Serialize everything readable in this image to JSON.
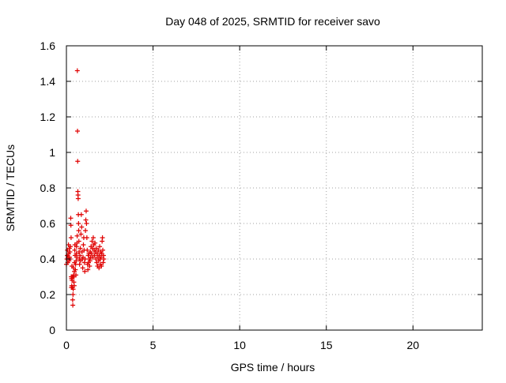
{
  "chart_data": {
    "type": "scatter",
    "title": "Day 048 of 2025, SRMTID for receiver savo",
    "xlabel": "GPS time / hours",
    "ylabel": "SRMTID / TECUs",
    "xlim": [
      0,
      24
    ],
    "ylim": [
      0,
      1.6
    ],
    "xticks": [
      0,
      5,
      10,
      15,
      20
    ],
    "xtick_labels": [
      "0",
      "5",
      "10",
      "15",
      "20"
    ],
    "yticks": [
      0,
      0.2,
      0.4,
      0.6,
      0.8,
      1.0,
      1.2,
      1.4,
      1.6
    ],
    "ytick_labels": [
      "0",
      "0.2",
      "0.4",
      "0.6",
      "0.8",
      "1",
      "1.2",
      "1.4",
      "1.6"
    ],
    "grid": true,
    "marker": "+",
    "color": "#e00000",
    "series": [
      {
        "name": "savo",
        "points": [
          [
            0.0,
            0.37
          ],
          [
            0.03,
            0.4
          ],
          [
            0.05,
            0.42
          ],
          [
            0.06,
            0.45
          ],
          [
            0.08,
            0.38
          ],
          [
            0.1,
            0.41
          ],
          [
            0.12,
            0.48
          ],
          [
            0.13,
            0.43
          ],
          [
            0.15,
            0.39
          ],
          [
            0.17,
            0.46
          ],
          [
            0.18,
            0.41
          ],
          [
            0.2,
            0.44
          ],
          [
            0.21,
            0.4
          ],
          [
            0.23,
            0.47
          ],
          [
            0.25,
            0.63
          ],
          [
            0.26,
            0.59
          ],
          [
            0.27,
            0.52
          ],
          [
            0.28,
            0.3
          ],
          [
            0.29,
            0.24
          ],
          [
            0.3,
            0.29
          ],
          [
            0.31,
            0.25
          ],
          [
            0.32,
            0.36
          ],
          [
            0.33,
            0.28
          ],
          [
            0.34,
            0.3
          ],
          [
            0.35,
            0.24
          ],
          [
            0.36,
            0.17
          ],
          [
            0.37,
            0.14
          ],
          [
            0.38,
            0.2
          ],
          [
            0.39,
            0.23
          ],
          [
            0.4,
            0.3
          ],
          [
            0.41,
            0.35
          ],
          [
            0.42,
            0.31
          ],
          [
            0.43,
            0.27
          ],
          [
            0.44,
            0.3
          ],
          [
            0.45,
            0.25
          ],
          [
            0.46,
            0.33
          ],
          [
            0.47,
            0.38
          ],
          [
            0.48,
            0.45
          ],
          [
            0.49,
            0.48
          ],
          [
            0.5,
            0.42
          ],
          [
            0.52,
            0.34
          ],
          [
            0.53,
            0.37
          ],
          [
            0.55,
            0.31
          ],
          [
            0.56,
            0.39
          ],
          [
            0.57,
            0.43
          ],
          [
            0.58,
            0.47
          ],
          [
            0.6,
            0.41
          ],
          [
            0.61,
            0.49
          ],
          [
            0.62,
            0.53
          ],
          [
            0.63,
            1.46
          ],
          [
            0.64,
            1.12
          ],
          [
            0.65,
            0.95
          ],
          [
            0.66,
            0.78
          ],
          [
            0.67,
            0.76
          ],
          [
            0.68,
            0.74
          ],
          [
            0.69,
            0.65
          ],
          [
            0.7,
            0.6
          ],
          [
            0.71,
            0.56
          ],
          [
            0.72,
            0.5
          ],
          [
            0.73,
            0.44
          ],
          [
            0.75,
            0.4
          ],
          [
            0.76,
            0.37
          ],
          [
            0.78,
            0.42
          ],
          [
            0.8,
            0.46
          ],
          [
            0.82,
            0.39
          ],
          [
            0.84,
            0.54
          ],
          [
            0.86,
            0.65
          ],
          [
            0.88,
            0.58
          ],
          [
            0.9,
            0.44
          ],
          [
            0.92,
            0.4
          ],
          [
            0.94,
            0.35
          ],
          [
            0.96,
            0.41
          ],
          [
            0.98,
            0.48
          ],
          [
            1.0,
            0.52
          ],
          [
            1.02,
            0.45
          ],
          [
            1.04,
            0.38
          ],
          [
            1.06,
            0.33
          ],
          [
            1.08,
            0.4
          ],
          [
            1.1,
            0.56
          ],
          [
            1.12,
            0.62
          ],
          [
            1.14,
            0.67
          ],
          [
            1.16,
            0.6
          ],
          [
            1.18,
            0.52
          ],
          [
            1.2,
            0.45
          ],
          [
            1.22,
            0.37
          ],
          [
            1.24,
            0.34
          ],
          [
            1.26,
            0.42
          ],
          [
            1.28,
            0.38
          ],
          [
            1.3,
            0.43
          ],
          [
            1.32,
            0.4
          ],
          [
            1.34,
            0.36
          ],
          [
            1.36,
            0.39
          ],
          [
            1.38,
            0.44
          ],
          [
            1.4,
            0.41
          ],
          [
            1.42,
            0.47
          ],
          [
            1.45,
            0.43
          ],
          [
            1.48,
            0.5
          ],
          [
            1.5,
            0.46
          ],
          [
            1.52,
            0.41
          ],
          [
            1.55,
            0.52
          ],
          [
            1.58,
            0.48
          ],
          [
            1.6,
            0.45
          ],
          [
            1.62,
            0.42
          ],
          [
            1.65,
            0.49
          ],
          [
            1.68,
            0.44
          ],
          [
            1.7,
            0.4
          ],
          [
            1.72,
            0.46
          ],
          [
            1.75,
            0.38
          ],
          [
            1.78,
            0.43
          ],
          [
            1.8,
            0.36
          ],
          [
            1.82,
            0.41
          ],
          [
            1.84,
            0.45
          ],
          [
            1.86,
            0.39
          ],
          [
            1.88,
            0.35
          ],
          [
            1.9,
            0.42
          ],
          [
            1.92,
            0.47
          ],
          [
            1.94,
            0.4
          ],
          [
            1.96,
            0.37
          ],
          [
            1.98,
            0.44
          ],
          [
            2.0,
            0.41
          ],
          [
            2.02,
            0.36
          ],
          [
            2.04,
            0.43
          ],
          [
            2.06,
            0.5
          ],
          [
            2.08,
            0.52
          ],
          [
            2.1,
            0.45
          ],
          [
            2.12,
            0.38
          ],
          [
            2.14,
            0.42
          ],
          [
            2.16,
            0.4
          ]
        ]
      }
    ]
  }
}
